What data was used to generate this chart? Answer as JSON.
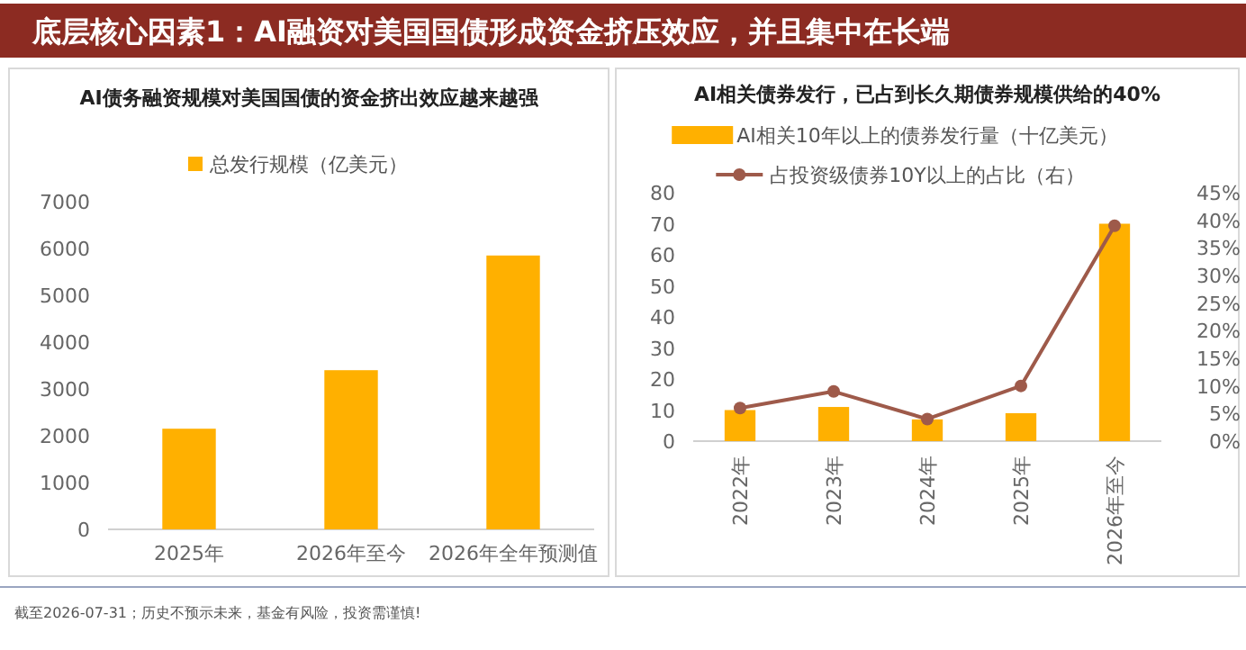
{
  "chart_data": [
    {
      "type": "other",
      "title": "底层核心因素1：AI融资对美国国债形成资金挤压效应，并且集中在长端",
      "annotations": [
        "截至2026-07-31；历史不预示未来，基金有风险，投资需谨慎!"
      ]
    },
    {
      "type": "bar",
      "title": "AI债务融资规模对美国国债的资金挤出效应越来越强",
      "categories": [
        "2025年",
        "2026年至今",
        "2026年全年预测值"
      ],
      "series": [
        {
          "name": "总发行规模（亿美元）",
          "color": "#ffb000",
          "values": [
            2150,
            3400,
            5850
          ]
        }
      ],
      "ylim": [
        0,
        7000
      ],
      "yticks": [
        0,
        1000,
        2000,
        3000,
        4000,
        5000,
        6000,
        7000
      ],
      "legend": "top"
    },
    {
      "type": "bar",
      "title": "AI相关债券发行，已占到长久期债券规模供给的40%",
      "categories": [
        "2022年",
        "2023年",
        "2024年",
        "2025年",
        "2026年至今"
      ],
      "series": [
        {
          "name": "AI相关10年以上的债券发行量（十亿美元）",
          "color": "#ffb000",
          "values": [
            10,
            11,
            7,
            9,
            70
          ]
        },
        {
          "name": "占投资级债券10Y以上的占比（右）",
          "type": "line",
          "axis": "y2",
          "marker": "circle",
          "color": "#9e5a4a",
          "values": [
            6,
            9,
            4,
            10,
            39
          ]
        }
      ],
      "ylim": [
        0,
        80
      ],
      "yticks": [
        0,
        10,
        20,
        30,
        40,
        50,
        60,
        70,
        80
      ],
      "y2lim": [
        0,
        45
      ],
      "y2ticks": [
        {
          "value": 0,
          "label": "0%"
        },
        {
          "value": 5,
          "label": "5%"
        },
        {
          "value": 10,
          "label": "10%"
        },
        {
          "value": 15,
          "label": "15%"
        },
        {
          "value": 20,
          "label": "20%"
        },
        {
          "value": 25,
          "label": "25%"
        },
        {
          "value": 30,
          "label": "30%"
        },
        {
          "value": 35,
          "label": "35%"
        },
        {
          "value": 40,
          "label": "40%"
        },
        {
          "value": 45,
          "label": "45%"
        }
      ],
      "legend": "top"
    }
  ]
}
